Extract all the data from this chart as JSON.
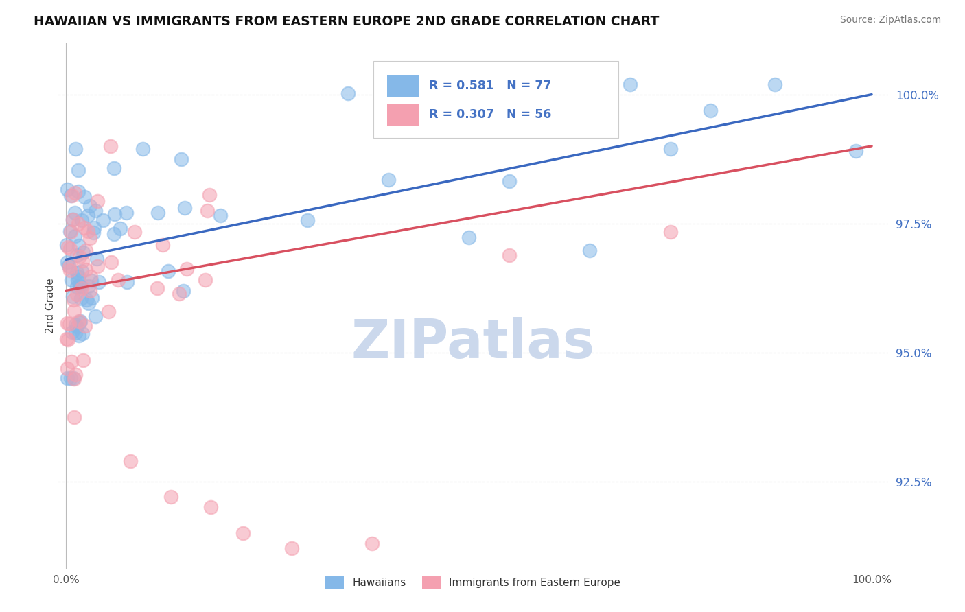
{
  "title": "HAWAIIAN VS IMMIGRANTS FROM EASTERN EUROPE 2ND GRADE CORRELATION CHART",
  "source": "Source: ZipAtlas.com",
  "ylabel": "2nd Grade",
  "xlim": [
    -0.01,
    1.02
  ],
  "ylim": [
    0.908,
    1.01
  ],
  "yticks": [
    0.925,
    0.95,
    0.975,
    1.0
  ],
  "ytick_labels": [
    "92.5%",
    "95.0%",
    "97.5%",
    "100.0%"
  ],
  "xtick_labels": [
    "0.0%",
    "100.0%"
  ],
  "xticks": [
    0.0,
    1.0
  ],
  "legend_r1_text": "R = 0.581   N = 77",
  "legend_r2_text": "R = 0.307   N = 56",
  "blue_color": "#85B8E8",
  "pink_color": "#F4A0B0",
  "trend_blue": "#3A68C0",
  "trend_pink": "#D85060",
  "watermark": "ZIPatlas",
  "watermark_color": "#CBD8EC",
  "background_color": "#FFFFFF",
  "grid_color": "#C8C8C8",
  "tick_label_color": "#4472C4",
  "title_color": "#111111",
  "source_color": "#777777"
}
